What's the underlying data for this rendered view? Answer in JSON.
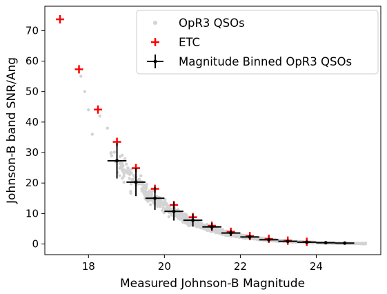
{
  "chart_data": {
    "type": "scatter",
    "xlabel": "Measured Johnson-B Magnitude",
    "ylabel": "Johnson-B band SNR/Ang",
    "xlim": [
      16.85,
      25.7
    ],
    "ylim": [
      -3.5,
      78
    ],
    "xticks": [
      18,
      20,
      22,
      24
    ],
    "yticks": [
      0,
      10,
      20,
      30,
      40,
      50,
      60,
      70
    ],
    "grid": false,
    "legend_position": "top-right",
    "legend": {
      "opr3": "OpR3 QSOs",
      "etc": "ETC",
      "binned": "Magnitude Binned OpR3 QSOs"
    },
    "series": [
      {
        "name": "OpR3 QSOs",
        "marker": "dot",
        "color": "#d3d3d3",
        "curve_note": "dense cloud of points following SNR decline with magnitude",
        "anchor_points": [
          {
            "x": 17.8,
            "y": 55
          },
          {
            "x": 17.9,
            "y": 50
          },
          {
            "x": 18.0,
            "y": 44
          },
          {
            "x": 18.1,
            "y": 36
          },
          {
            "x": 18.3,
            "y": 42
          },
          {
            "x": 18.5,
            "y": 38
          },
          {
            "x": 18.6,
            "y": 30
          },
          {
            "x": 24.8,
            "y": 0.4
          },
          {
            "x": 25.3,
            "y": 0.3
          }
        ]
      },
      {
        "name": "ETC",
        "marker": "plus",
        "color": "#ff0000",
        "x": [
          17.25,
          17.75,
          18.25,
          18.75,
          19.25,
          19.75,
          20.25,
          20.75,
          21.25,
          21.75,
          22.25,
          22.75,
          23.25,
          23.75
        ],
        "y": [
          73.7,
          57.3,
          44.1,
          33.5,
          24.9,
          18.1,
          12.8,
          8.8,
          6.0,
          4.0,
          2.6,
          1.7,
          1.1,
          0.7
        ]
      },
      {
        "name": "Magnitude Binned OpR3 QSOs",
        "marker": "errorbar",
        "color": "#000000",
        "x": [
          18.75,
          19.25,
          19.75,
          20.25,
          20.75,
          21.25,
          21.75,
          22.25,
          22.75,
          23.25,
          23.75,
          24.25,
          24.75
        ],
        "y": [
          27.3,
          20.3,
          15.0,
          10.7,
          7.8,
          5.6,
          3.6,
          2.3,
          1.4,
          0.9,
          0.6,
          0.4,
          0.3
        ],
        "xerr": 0.25,
        "yerr": [
          5.8,
          4.6,
          3.8,
          3.0,
          2.1,
          1.3,
          1.0,
          0.8,
          0.6,
          0.4,
          0.3,
          0.15,
          0.1
        ]
      }
    ]
  }
}
